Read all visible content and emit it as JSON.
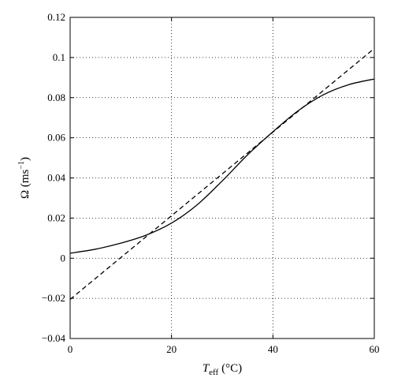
{
  "chart_data": {
    "type": "line",
    "xlabel": "T",
    "xlabel_sub": "eff",
    "xlabel_unit": "(°C)",
    "ylabel": "Ω (ms",
    "ylabel_sup": "−1",
    "ylabel_close": ")",
    "xlim": [
      0,
      60
    ],
    "ylim": [
      -0.04,
      0.12
    ],
    "x_ticks": [
      0,
      20,
      40,
      60
    ],
    "x_tick_labels": [
      "0",
      "20",
      "40",
      "60"
    ],
    "y_ticks": [
      -0.04,
      -0.02,
      0,
      0.02,
      0.04,
      0.06,
      0.08,
      0.1,
      0.12
    ],
    "y_tick_labels": [
      "−0.04",
      "−0.02",
      "0",
      "0.02",
      "0.04",
      "0.06",
      "0.08",
      "0.1",
      "0.12"
    ],
    "grid": true,
    "grid_style": "dotted",
    "series": [
      {
        "style": "solid",
        "color": "#000000",
        "x": [
          0,
          5,
          10,
          15,
          20,
          25,
          30,
          35,
          40,
          45,
          50,
          55,
          60
        ],
        "y": [
          0.0025,
          0.0045,
          0.0075,
          0.0115,
          0.0175,
          0.0265,
          0.0385,
          0.0515,
          0.063,
          0.0735,
          0.0815,
          0.0865,
          0.0893
        ]
      },
      {
        "style": "dashed",
        "color": "#000000",
        "x": [
          0,
          60
        ],
        "y": [
          -0.0205,
          0.1045
        ]
      }
    ]
  }
}
